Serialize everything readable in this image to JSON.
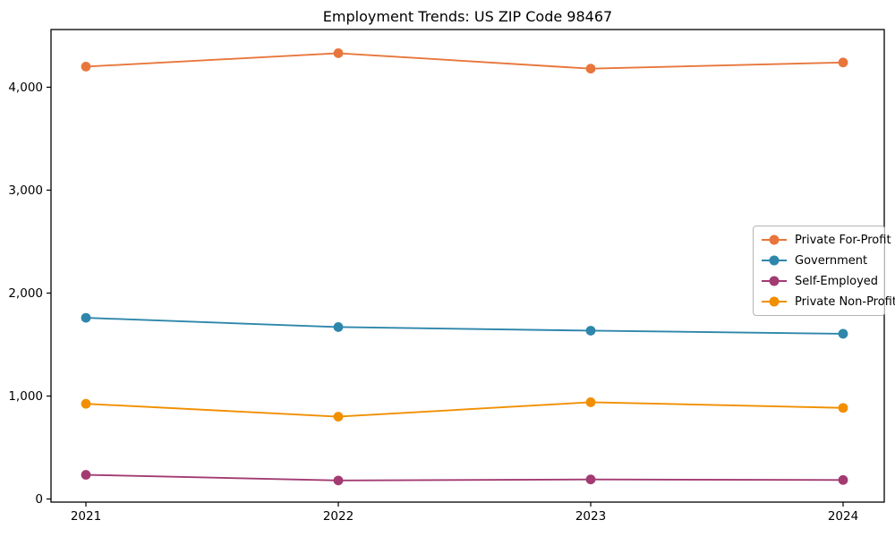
{
  "title": "Employment Trends: US ZIP Code 98467",
  "chart_data": {
    "type": "line",
    "title": "Employment Trends: US ZIP Code 98467",
    "xlabel": "",
    "ylabel": "",
    "x": [
      2021,
      2022,
      2023,
      2024
    ],
    "x_tick_labels": [
      "2021",
      "2022",
      "2023",
      "2024"
    ],
    "y_ticks": [
      0,
      1000,
      2000,
      3000,
      4000
    ],
    "y_tick_labels": [
      "0",
      "1,000",
      "2,000",
      "3,000",
      "4,000"
    ],
    "ylim": [
      -30,
      4560
    ],
    "grid": false,
    "marker": "o",
    "legend_position": "center-right",
    "series": [
      {
        "name": "Private For-Profit",
        "color": "#e8763c",
        "values": [
          4200,
          4330,
          4180,
          4240
        ]
      },
      {
        "name": "Government",
        "color": "#2e86ab",
        "values": [
          1760,
          1670,
          1635,
          1605
        ]
      },
      {
        "name": "Self-Employed",
        "color": "#a23b72",
        "values": [
          235,
          180,
          190,
          185
        ]
      },
      {
        "name": "Private Non-Profit",
        "color": "#f18f01",
        "values": [
          925,
          800,
          940,
          885
        ]
      }
    ]
  }
}
